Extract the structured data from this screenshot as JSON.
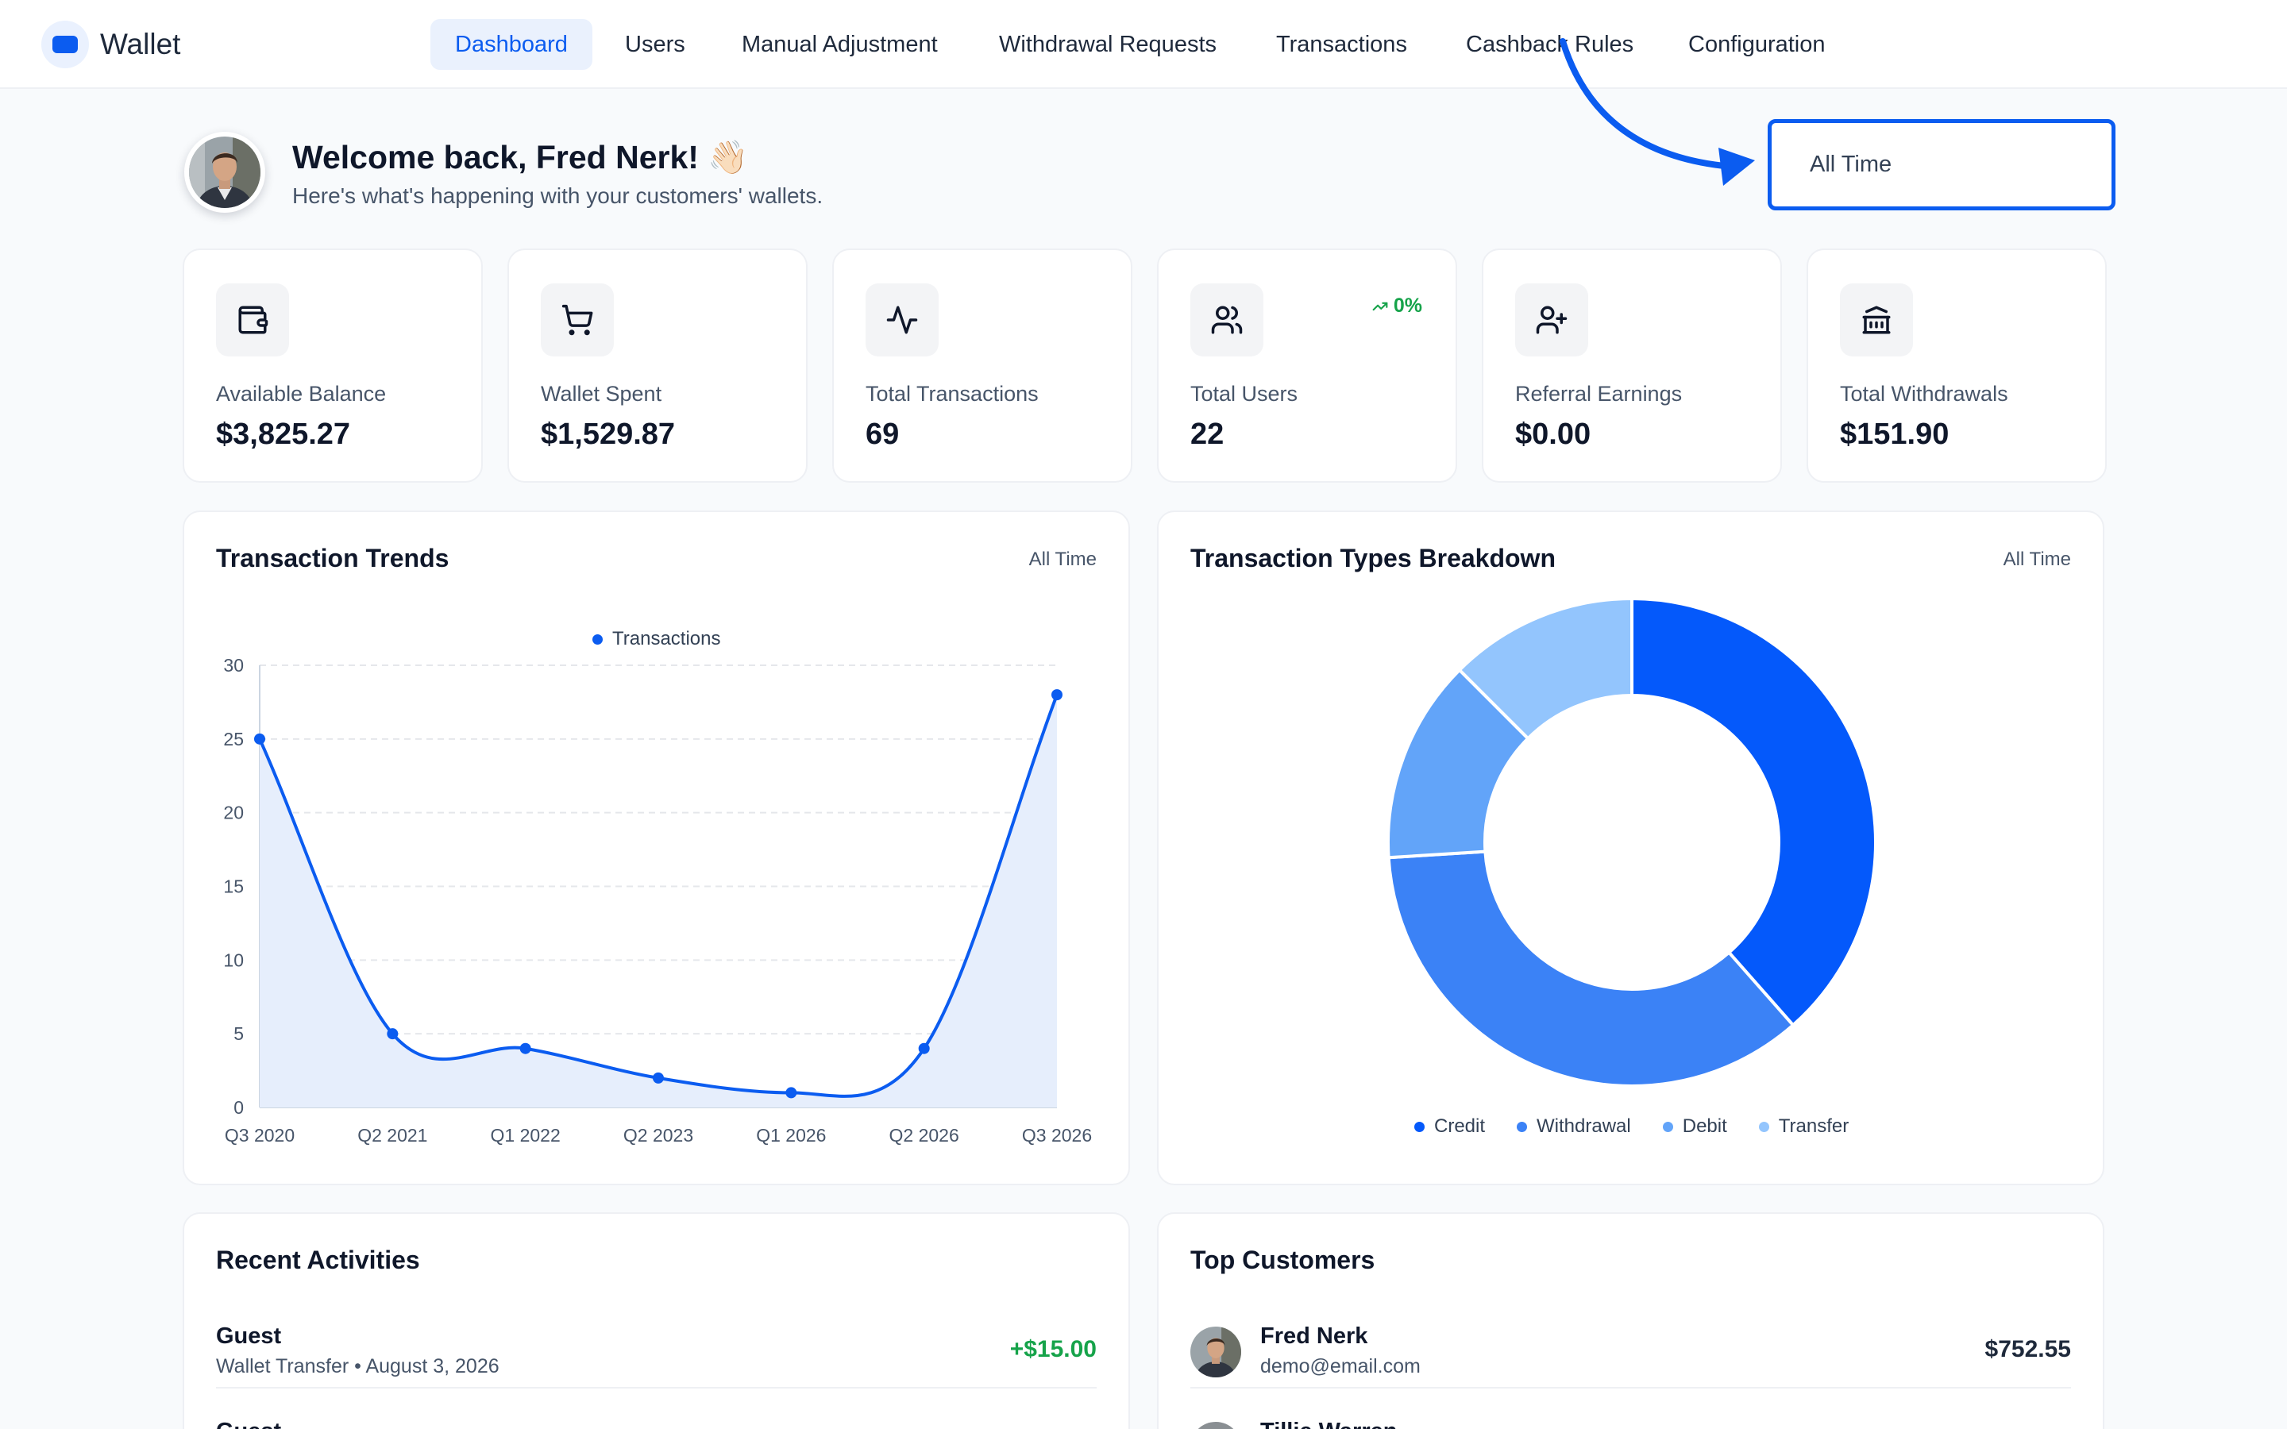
{
  "brand": {
    "name": "Wallet",
    "accent": "#0b5cf0"
  },
  "nav": [
    {
      "label": "Dashboard",
      "active": true
    },
    {
      "label": "Users"
    },
    {
      "label": "Manual Adjustment"
    },
    {
      "label": "Withdrawal Requests"
    },
    {
      "label": "Transactions"
    },
    {
      "label": "Cashback Rules"
    },
    {
      "label": "Configuration"
    }
  ],
  "welcome": {
    "title": "Welcome back, Fred Nerk! 👋🏻",
    "subtitle": "Here's what's happening with your customers' wallets."
  },
  "range_select": {
    "value": "All Time"
  },
  "stats": [
    {
      "label": "Available Balance",
      "value": "$3,825.27",
      "icon": "wallet-icon"
    },
    {
      "label": "Wallet Spent",
      "value": "$1,529.87",
      "icon": "cart-icon"
    },
    {
      "label": "Total Transactions",
      "value": "69",
      "icon": "activity-icon"
    },
    {
      "label": "Total Users",
      "value": "22",
      "icon": "users-icon",
      "change": "0%"
    },
    {
      "label": "Referral Earnings",
      "value": "$0.00",
      "icon": "user-plus-icon"
    },
    {
      "label": "Total Withdrawals",
      "value": "$151.90",
      "icon": "bank-icon"
    }
  ],
  "trends": {
    "title": "Transaction Trends",
    "range": "All Time",
    "chart_data": {
      "type": "area",
      "categories": [
        "Q3 2020",
        "Q2 2021",
        "Q1 2022",
        "Q2 2023",
        "Q1 2026",
        "Q2 2026",
        "Q3 2026"
      ],
      "series": [
        {
          "name": "Transactions",
          "values": [
            25,
            5,
            4,
            2,
            1,
            4,
            28
          ],
          "color": "#0b5cf0"
        }
      ],
      "ylim": [
        0,
        30
      ],
      "yticks": [
        0,
        5,
        10,
        15,
        20,
        25,
        30
      ],
      "grid": true,
      "legend": "top-center"
    }
  },
  "breakdown": {
    "title": "Transaction Types Breakdown",
    "range": "All Time",
    "chart_data": {
      "type": "pie",
      "donut": true,
      "labels": [
        "Credit",
        "Withdrawal",
        "Debit",
        "Transfer"
      ],
      "values": [
        38.5,
        35.5,
        13.5,
        12.5
      ],
      "colors": [
        "#0459fb",
        "#3b82f6",
        "#62a4f9",
        "#93c5fd"
      ],
      "legend": "bottom"
    }
  },
  "recent": {
    "title": "Recent Activities",
    "items": [
      {
        "name": "Guest",
        "sub": "Wallet Transfer • August 3, 2026",
        "amount": "+$15.00",
        "amount_color": "#16a34a"
      },
      {
        "name": "Guest",
        "sub": "",
        "amount": ""
      }
    ]
  },
  "customers": {
    "title": "Top Customers",
    "items": [
      {
        "name": "Fred Nerk",
        "email": "demo@email.com",
        "amount": "$752.55"
      },
      {
        "name": "Tillie Warren",
        "email": "",
        "amount": ""
      }
    ]
  }
}
